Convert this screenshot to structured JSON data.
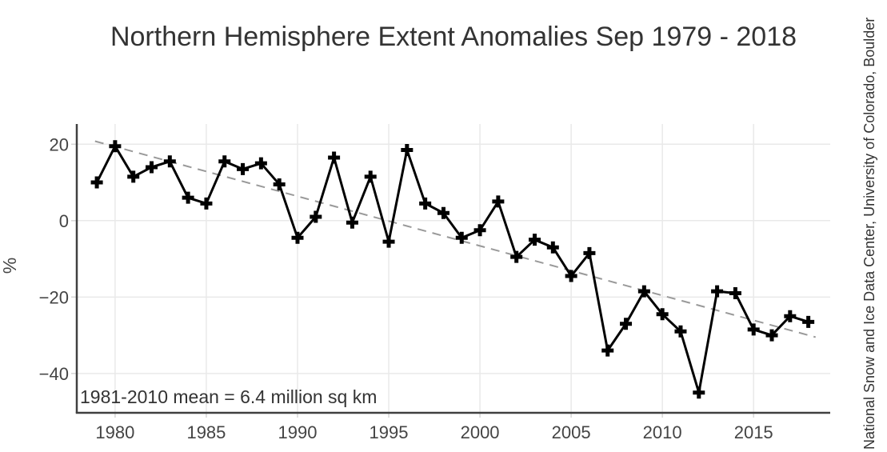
{
  "chart_data": {
    "type": "line",
    "title": "Northern Hemisphere Extent Anomalies Sep 1979 - 2018",
    "ylabel": "%",
    "xlabel": "",
    "annotation": "1981-2010 mean = 6.4 million sq km",
    "source_note": "National Snow and Ice Data Center, University of Colorado, Boulder",
    "x": [
      1979,
      1980,
      1981,
      1982,
      1983,
      1984,
      1985,
      1986,
      1987,
      1988,
      1989,
      1990,
      1991,
      1992,
      1993,
      1994,
      1995,
      1996,
      1997,
      1998,
      1999,
      2000,
      2001,
      2002,
      2003,
      2004,
      2005,
      2006,
      2007,
      2008,
      2009,
      2010,
      2011,
      2012,
      2013,
      2014,
      2015,
      2016,
      2017,
      2018
    ],
    "series": [
      {
        "name": "September extent anomaly",
        "marker": "plus",
        "color": "#000000",
        "values": [
          10,
          19.5,
          11.5,
          14,
          15.5,
          6,
          4.5,
          15.5,
          13.5,
          15,
          9.5,
          -4.5,
          1,
          16.5,
          -0.5,
          11.5,
          -5.5,
          18.5,
          4.5,
          2,
          -4.5,
          -2.5,
          5,
          -9.5,
          -5,
          -7,
          -14.5,
          -8.5,
          -34,
          -27,
          -18.5,
          -24.5,
          -29,
          -45,
          -18.5,
          -19,
          -28.5,
          -30,
          -25,
          -26.5
        ]
      }
    ],
    "trend": {
      "name": "linear trend",
      "style": "dashed",
      "color": "#999999",
      "start": {
        "x": 1978.9,
        "y": 20.8
      },
      "end": {
        "x": 2018.4,
        "y": -30.5
      }
    },
    "x_ticks": [
      1980,
      1985,
      1990,
      1995,
      2000,
      2005,
      2010,
      2015
    ],
    "y_ticks": [
      20,
      0,
      -20,
      -40
    ],
    "xlim": [
      1977.9,
      2019.2
    ],
    "ylim": [
      -50.3,
      25.3
    ],
    "grid": true,
    "legend": "none",
    "colors": {
      "line": "#000000",
      "trend": "#999999",
      "grid": "#e9e9e9",
      "tick_mark": "#d6d6d6",
      "axis": "#404040",
      "tick_text": "#444444",
      "title_text": "#333333",
      "annotation_text": "#333333",
      "source_text": "#333333",
      "background": "#ffffff"
    }
  }
}
